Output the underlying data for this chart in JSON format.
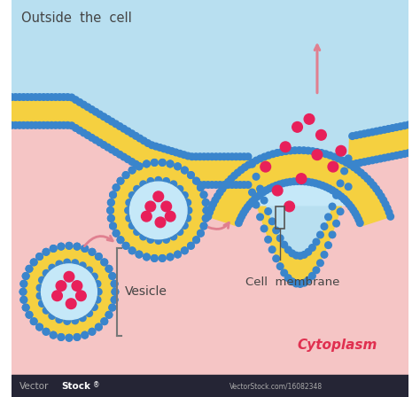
{
  "bg_outside_color": "#b8dff0",
  "bg_cytoplasm_color": "#f5c5c5",
  "membrane_bead_color": "#3a85cc",
  "membrane_lipid_color": "#f5d040",
  "vesicle_inner_color": "#c5e8f8",
  "cargo_color": "#e8205a",
  "arrow_color": "#e08090",
  "text_color_dark": "#444444",
  "text_color_cytoplasm": "#e03050",
  "outside_label": "Outside  the  cell",
  "vesicle_label": "Vesicle",
  "membrane_label": "Cell  membrane",
  "cytoplasm_label": "Cytoplasm",
  "bottom_bar_color": "#252535",
  "fig_width": 4.74,
  "fig_height": 4.48,
  "dpi": 100
}
